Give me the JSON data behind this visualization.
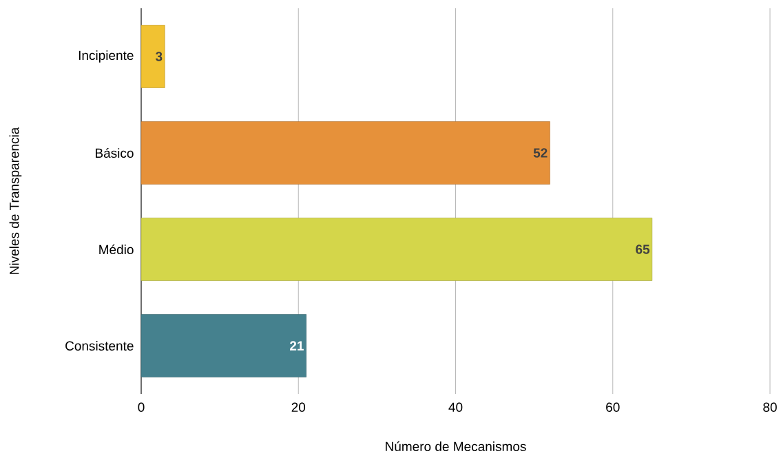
{
  "chart_data": {
    "type": "bar",
    "orientation": "horizontal",
    "xlabel": "Número de Mecanismos",
    "ylabel": "Niveles de Transparencia",
    "categories": [
      "Incipiente",
      "Básico",
      "Médio",
      "Consistente"
    ],
    "values": [
      3,
      52,
      65,
      21
    ],
    "colors": [
      "#f1c232",
      "#e6913a",
      "#d4d64a",
      "#45818e"
    ],
    "xlim": [
      0,
      80
    ],
    "xticks": [
      0,
      20,
      40,
      60,
      80
    ],
    "grid": "x",
    "data_labels": true
  }
}
